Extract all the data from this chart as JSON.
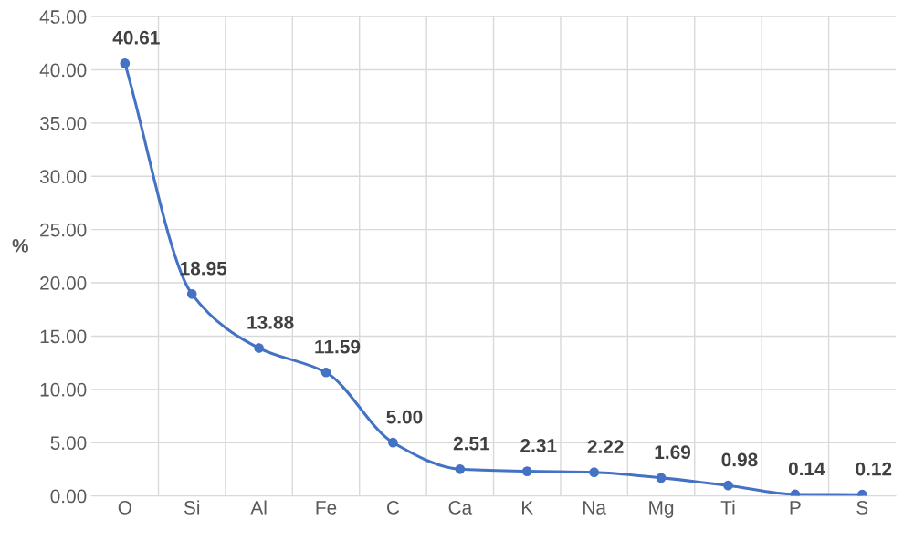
{
  "chart_data": {
    "type": "line",
    "ylabel": "%",
    "categories": [
      "O",
      "Si",
      "Al",
      "Fe",
      "C",
      "Ca",
      "K",
      "Na",
      "Mg",
      "Ti",
      "P",
      "S"
    ],
    "series": [
      {
        "color": "#4472c4",
        "values": [
          40.61,
          18.95,
          13.88,
          11.59,
          5.0,
          2.51,
          2.31,
          2.22,
          1.69,
          0.98,
          0.14,
          0.12
        ],
        "value_labels": [
          "40.61",
          "18.95",
          "13.88",
          "11.59",
          "5.00",
          "2.51",
          "2.31",
          "2.22",
          "1.69",
          "0.98",
          "0.14",
          "0.12"
        ]
      }
    ],
    "ylim": [
      0,
      45
    ],
    "yticks": [
      {
        "value": 0,
        "label": "0.00"
      },
      {
        "value": 5,
        "label": "5.00"
      },
      {
        "value": 10,
        "label": "10.00"
      },
      {
        "value": 15,
        "label": "15.00"
      },
      {
        "value": 20,
        "label": "20.00"
      },
      {
        "value": 25,
        "label": "25.00"
      },
      {
        "value": 30,
        "label": "30.00"
      },
      {
        "value": 35,
        "label": "35.00"
      },
      {
        "value": 40,
        "label": "40.00"
      },
      {
        "value": 45,
        "label": "45.00"
      }
    ],
    "grid": true,
    "marker": "circle",
    "line_style": "solid",
    "legend": false
  }
}
